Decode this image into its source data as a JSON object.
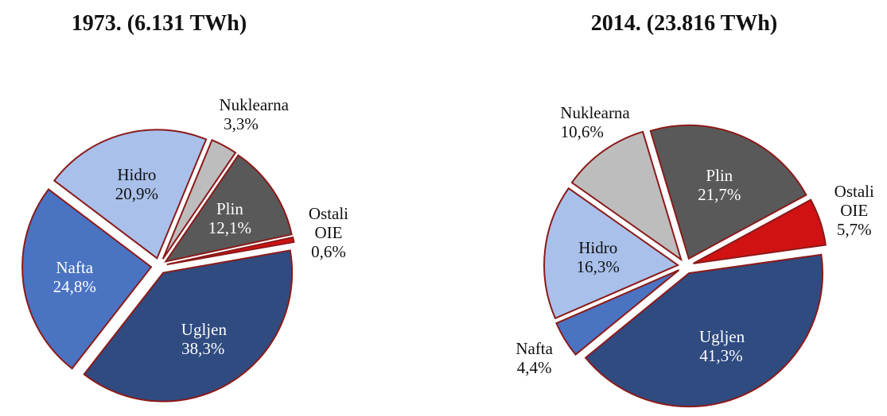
{
  "chart_data": [
    {
      "type": "pie",
      "title": "1973. (6.131 TWh)",
      "categories": [
        "Ugljen",
        "Nafta",
        "Hidro",
        "Nuklearna",
        "Plin",
        "Ostali OIE"
      ],
      "values": [
        38.3,
        24.8,
        20.9,
        3.3,
        12.1,
        0.6
      ],
      "value_labels": [
        "38,3%",
        "24,8%",
        "20,9%",
        "3,3%",
        "12,1%",
        "0,6%"
      ],
      "colors": [
        "#2f4b80",
        "#4a73c2",
        "#a8c0ea",
        "#bdbdbd",
        "#595959",
        "#d01212"
      ]
    },
    {
      "type": "pie",
      "title": "2014. (23.816 TWh)",
      "categories": [
        "Ugljen",
        "Nafta",
        "Hidro",
        "Nuklearna",
        "Plin",
        "Ostali OIE"
      ],
      "values": [
        41.3,
        4.4,
        16.3,
        10.6,
        21.7,
        5.7
      ],
      "value_labels": [
        "41,3%",
        "4,4%",
        "16,3%",
        "10,6%",
        "21,7%",
        "5,7%"
      ],
      "colors": [
        "#2f4b80",
        "#4a73c2",
        "#a8c0ea",
        "#bdbdbd",
        "#595959",
        "#d01212"
      ]
    }
  ]
}
